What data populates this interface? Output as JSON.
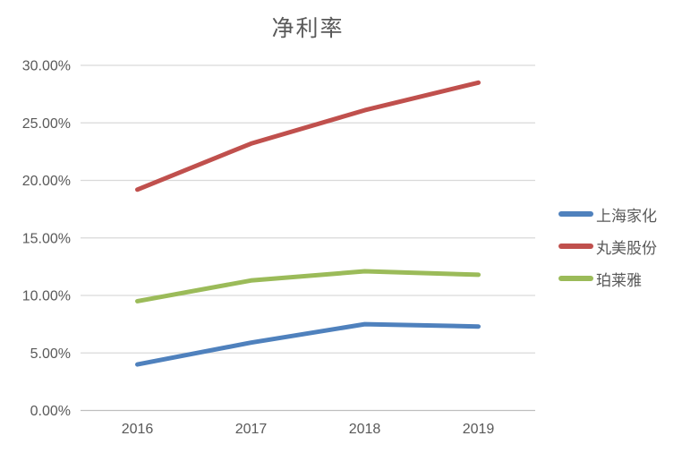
{
  "title": "净利率",
  "chart_data": {
    "type": "line",
    "title": "净利率",
    "categories": [
      "2016",
      "2017",
      "2018",
      "2019"
    ],
    "series": [
      {
        "name": "上海家化",
        "color": "#4F81BD",
        "values": [
          4.0,
          5.9,
          7.5,
          7.3
        ]
      },
      {
        "name": "丸美股份",
        "color": "#C0504D",
        "values": [
          19.2,
          23.2,
          26.1,
          28.5
        ]
      },
      {
        "name": "珀莱雅",
        "color": "#9BBB59",
        "values": [
          9.5,
          11.3,
          12.1,
          11.8
        ]
      }
    ],
    "xlabel": "",
    "ylabel": "",
    "ylim": [
      0,
      30
    ],
    "ytick_step": 5,
    "ytick_labels": [
      "0.00%",
      "5.00%",
      "10.00%",
      "15.00%",
      "20.00%",
      "25.00%",
      "30.00%"
    ],
    "grid": "horizontal",
    "legend_position": "right"
  },
  "colors": {
    "background": "#FFFFFF",
    "gridline": "#D9D9D9",
    "axis_line": "#BFBFBF",
    "text": "#595959"
  }
}
